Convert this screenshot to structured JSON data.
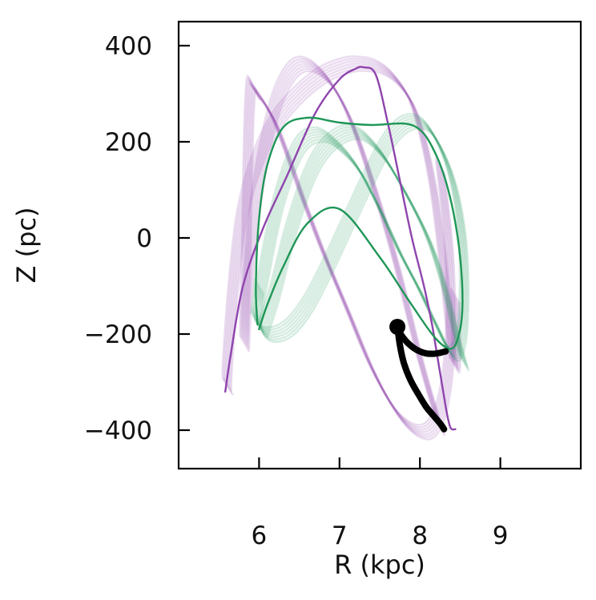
{
  "chart_data": {
    "type": "line",
    "title": "",
    "xlabel": "R (kpc)",
    "ylabel": "Z (pc)",
    "xlim": [
      5.0,
      10.0
    ],
    "ylim": [
      -480,
      450
    ],
    "xticks": [
      6,
      7,
      8,
      9
    ],
    "xtick_labels": [
      "6",
      "7",
      "8",
      "9"
    ],
    "yticks": [
      400,
      200,
      0,
      -200,
      -400
    ],
    "ytick_labels": [
      "400",
      "200",
      "0",
      "−200",
      "−400"
    ],
    "grid": false,
    "legend": "none",
    "colors": {
      "purple": "#8e44ad",
      "green": "#1e9656",
      "black": "#000000"
    },
    "series": [
      {
        "color": "#8e44ad",
        "style": "ensemble",
        "x": [
          8.25,
          8.0,
          7.7,
          7.4,
          7.1,
          6.8,
          6.5,
          6.25,
          6.05,
          5.92,
          5.85,
          5.82,
          5.82,
          5.84,
          5.85,
          5.86,
          5.87,
          5.88,
          5.89,
          5.9,
          5.91,
          5.92,
          5.93,
          5.95
        ],
        "y": [
          -395,
          -250,
          -50,
          120,
          260,
          340,
          360,
          300,
          170,
          20,
          -120,
          -220,
          -150,
          -50,
          60,
          150,
          220,
          270,
          300,
          318,
          322,
          320,
          315,
          305
        ]
      },
      {
        "color": "#8e44ad",
        "style": "ensemble",
        "x": [
          5.95,
          6.05,
          6.2,
          6.35,
          6.55,
          6.8,
          7.1,
          7.4,
          7.7,
          7.95,
          8.15,
          8.3,
          8.38,
          8.36,
          8.25
        ],
        "y": [
          305,
          285,
          240,
          175,
          80,
          -30,
          -150,
          -270,
          -360,
          -400,
          -395,
          -330,
          -200,
          -20,
          150
        ]
      },
      {
        "color": "#8e44ad",
        "style": "ensemble",
        "x": [
          5.62,
          5.6,
          5.62,
          5.68,
          5.78,
          5.95,
          6.2,
          6.5,
          6.8,
          7.1,
          7.3,
          7.5,
          7.7,
          7.9,
          8.05,
          8.18,
          8.28,
          8.36,
          8.42,
          8.45,
          8.44
        ],
        "y": [
          -310,
          -300,
          -230,
          -100,
          40,
          150,
          240,
          300,
          340,
          360,
          362,
          355,
          330,
          280,
          200,
          90,
          -40,
          -170,
          -260,
          -240,
          -120
        ]
      },
      {
        "color": "#8e44ad",
        "style": "solid",
        "x": [
          5.58,
          5.65,
          5.8,
          6.05,
          6.35,
          6.7,
          7.0,
          7.2,
          7.3,
          7.45,
          7.6,
          7.75,
          7.9,
          8.05,
          8.15,
          8.22,
          8.28,
          8.33,
          8.38,
          8.44
        ],
        "y": [
          -320,
          -240,
          -100,
          20,
          130,
          260,
          330,
          352,
          355,
          340,
          240,
          120,
          0,
          -100,
          -180,
          -250,
          -310,
          -360,
          -395,
          -398
        ]
      },
      {
        "color": "#1e9656",
        "style": "ensemble",
        "x": [
          5.95,
          6.05,
          6.25,
          6.5,
          6.75,
          7.0,
          7.25,
          7.5,
          7.75,
          8.0,
          8.2,
          8.4,
          8.52,
          8.55,
          8.5,
          8.35,
          8.1,
          7.85,
          7.6,
          7.35,
          7.1,
          6.85,
          6.6,
          6.35,
          6.1,
          5.98,
          6.0
        ],
        "y": [
          -170,
          -80,
          80,
          190,
          215,
          190,
          140,
          60,
          -30,
          -110,
          -180,
          -240,
          -200,
          -80,
          40,
          150,
          230,
          240,
          200,
          120,
          30,
          -60,
          -140,
          -190,
          -200,
          -170,
          -100
        ]
      },
      {
        "color": "#1e9656",
        "style": "ensemble",
        "x": [
          6.05,
          6.2,
          6.4,
          6.65,
          6.9,
          7.2,
          7.5,
          7.8,
          8.1,
          8.3,
          8.45,
          8.55
        ],
        "y": [
          -190,
          -110,
          20,
          140,
          200,
          220,
          180,
          100,
          0,
          -100,
          -200,
          -260
        ]
      },
      {
        "color": "#1e9656",
        "style": "solid",
        "x": [
          5.98,
          5.96,
          6.0,
          6.1,
          6.3,
          6.6,
          7.0,
          7.4,
          7.8,
          8.0,
          8.15,
          8.3,
          8.42,
          8.5,
          8.53,
          8.5,
          8.4,
          8.2,
          7.9,
          7.5,
          7.0,
          6.6,
          6.3,
          6.1,
          6.0
        ],
        "y": [
          -180,
          -100,
          40,
          150,
          230,
          250,
          240,
          235,
          238,
          225,
          190,
          130,
          50,
          -40,
          -130,
          -190,
          -230,
          -210,
          -140,
          -40,
          60,
          30,
          -60,
          -140,
          -190
        ]
      },
      {
        "color": "#000000",
        "style": "track",
        "x": [
          7.72,
          7.75,
          7.8,
          7.88,
          7.98,
          8.08,
          8.18,
          8.26,
          8.3
        ],
        "y": [
          -185,
          -222,
          -260,
          -295,
          -325,
          -352,
          -372,
          -388,
          -398
        ]
      },
      {
        "color": "#000000",
        "style": "track",
        "x": [
          7.72,
          7.76,
          7.84,
          7.95,
          8.07,
          8.17,
          8.25,
          8.32
        ],
        "y": [
          -185,
          -200,
          -217,
          -232,
          -240,
          -241,
          -239,
          -236
        ]
      }
    ],
    "points": [
      {
        "x": 7.72,
        "y": -185,
        "color": "#000000"
      }
    ]
  }
}
